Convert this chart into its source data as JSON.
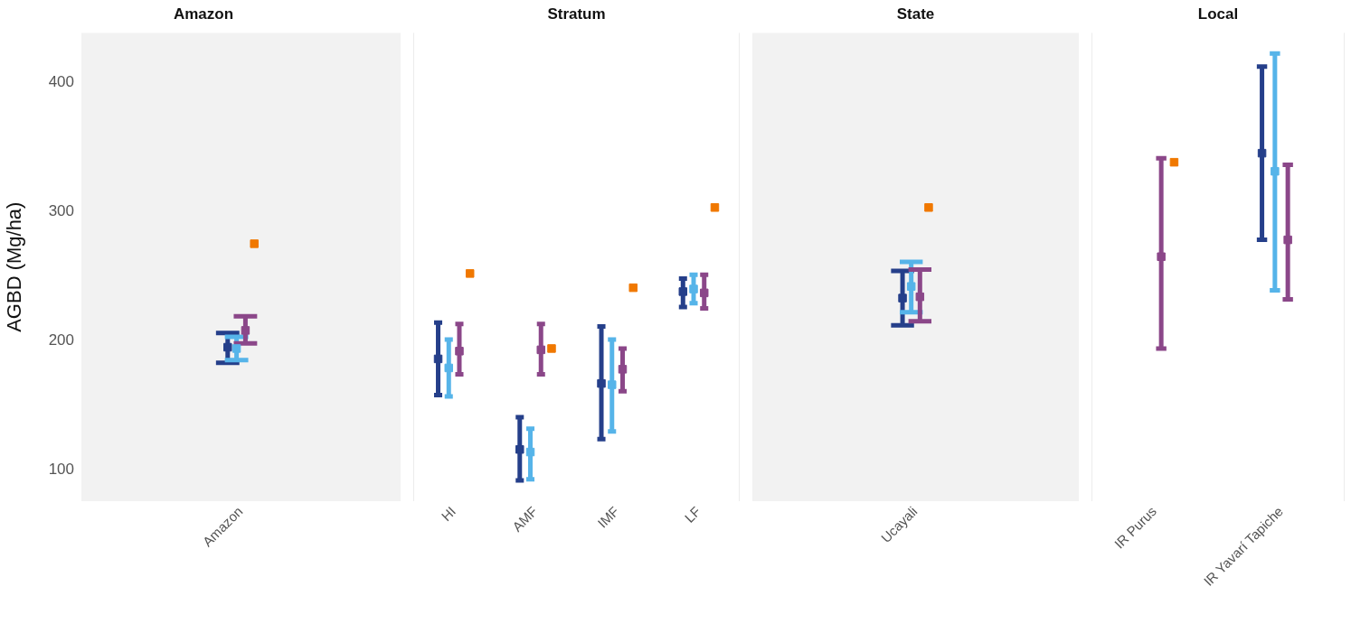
{
  "chart_data": [
    {
      "type": "scatter",
      "title": "Amazon",
      "ylabel": "AGBD (Mg/ha)",
      "categories": [
        "Amazon"
      ],
      "ylim": [
        76,
        438
      ],
      "yticks": [
        100,
        200,
        300,
        400
      ],
      "marker": "square",
      "grid": false,
      "series": [
        {
          "color": "#253f8a",
          "values": [
            195
          ],
          "errors": [
            [
              183,
              206
            ]
          ]
        },
        {
          "color": "#56b4e9",
          "values": [
            194
          ],
          "errors": [
            [
              185,
              203
            ]
          ]
        },
        {
          "color": "#8b4789",
          "values": [
            208
          ],
          "errors": [
            [
              198,
              219
            ]
          ]
        },
        {
          "color": "#f07800",
          "values": [
            275
          ]
        }
      ]
    },
    {
      "type": "scatter",
      "title": "Stratum",
      "categories": [
        "HI",
        "AMF",
        "IMF",
        "LF"
      ],
      "ylim": [
        76,
        438
      ],
      "yticks": [
        100,
        200,
        300,
        400
      ],
      "marker": "square",
      "grid": false,
      "tick_labels": "x",
      "series": [
        {
          "color": "#253f8a",
          "values": [
            186,
            116,
            167,
            238
          ],
          "errors": [
            [
              158,
              214
            ],
            [
              92,
              141
            ],
            [
              124,
              211
            ],
            [
              226,
              248
            ]
          ]
        },
        {
          "color": "#56b4e9",
          "values": [
            179,
            114,
            166,
            240
          ],
          "errors": [
            [
              157,
              201
            ],
            [
              93,
              132
            ],
            [
              130,
              201
            ],
            [
              229,
              251
            ]
          ]
        },
        {
          "color": "#8b4789",
          "values": [
            192,
            193,
            178,
            237
          ],
          "errors": [
            [
              174,
              213
            ],
            [
              174,
              213
            ],
            [
              161,
              194
            ],
            [
              225,
              251
            ]
          ]
        },
        {
          "color": "#f07800",
          "values": [
            252,
            194,
            241,
            303
          ]
        }
      ]
    },
    {
      "type": "scatter",
      "title": "State",
      "categories": [
        "Ucayali"
      ],
      "ylim": [
        76,
        438
      ],
      "yticks": [
        100,
        200,
        300,
        400
      ],
      "marker": "square",
      "grid": false,
      "tick_labels": "x",
      "series": [
        {
          "color": "#253f8a",
          "values": [
            233
          ],
          "errors": [
            [
              212,
              254
            ]
          ]
        },
        {
          "color": "#56b4e9",
          "values": [
            242
          ],
          "errors": [
            [
              222,
              261
            ]
          ]
        },
        {
          "color": "#8b4789",
          "values": [
            234
          ],
          "errors": [
            [
              215,
              255
            ]
          ]
        },
        {
          "color": "#f07800",
          "values": [
            303
          ]
        }
      ]
    },
    {
      "type": "scatter",
      "title": "Local",
      "categories": [
        "IR Purus",
        "IR Yavarí Tapiche"
      ],
      "ylim": [
        76,
        438
      ],
      "yticks": [
        100,
        200,
        300,
        400
      ],
      "marker": "square",
      "grid": false,
      "tick_labels": "x",
      "series": [
        {
          "color": "#253f8a",
          "values": [
            null,
            345
          ],
          "errors": [
            null,
            [
              278,
              412
            ]
          ]
        },
        {
          "color": "#56b4e9",
          "values": [
            null,
            331
          ],
          "errors": [
            null,
            [
              239,
              422
            ]
          ]
        },
        {
          "color": "#8b4789",
          "values": [
            265,
            278
          ],
          "errors": [
            [
              194,
              341
            ],
            [
              232,
              336
            ]
          ]
        },
        {
          "color": "#f07800",
          "values": [
            338,
            null
          ]
        }
      ]
    }
  ]
}
